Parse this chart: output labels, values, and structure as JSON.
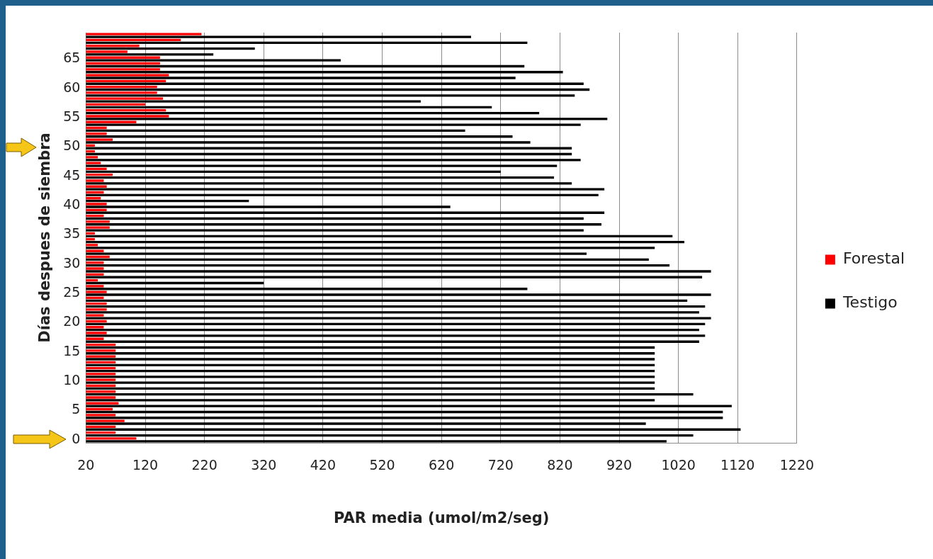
{
  "chart_data": {
    "type": "bar",
    "orientation": "horizontal",
    "xlabel": "PAR media (umol/m2/seg)",
    "ylabel": "Días despues de siembra",
    "categories": [
      null,
      null,
      null,
      null,
      "65",
      null,
      null,
      null,
      null,
      "60",
      null,
      null,
      null,
      null,
      "55",
      null,
      null,
      null,
      null,
      "50",
      null,
      null,
      null,
      null,
      "45",
      null,
      null,
      null,
      null,
      "40",
      null,
      null,
      null,
      null,
      "35",
      null,
      null,
      null,
      null,
      "30",
      null,
      null,
      null,
      null,
      "25",
      null,
      null,
      null,
      null,
      "20",
      null,
      null,
      null,
      null,
      "15",
      null,
      null,
      null,
      null,
      "10",
      null,
      null,
      null,
      null,
      "5",
      null,
      null,
      null,
      null,
      "0"
    ],
    "series": [
      {
        "name": "Forestal",
        "color": "#ff0000",
        "values": [
          215,
          180,
          110,
          90,
          145,
          145,
          145,
          160,
          155,
          140,
          140,
          150,
          120,
          155,
          160,
          105,
          55,
          55,
          65,
          35,
          35,
          40,
          45,
          55,
          65,
          50,
          55,
          50,
          45,
          55,
          55,
          50,
          60,
          60,
          35,
          35,
          40,
          50,
          60,
          50,
          50,
          50,
          40,
          50,
          55,
          50,
          55,
          55,
          50,
          55,
          50,
          55,
          50,
          70,
          70,
          70,
          70,
          70,
          70,
          70,
          70,
          70,
          70,
          75,
          65,
          70,
          85,
          70,
          70,
          105
        ]
      },
      {
        "name": "Testigo",
        "color": "#000000",
        "values": [
          670,
          765,
          305,
          235,
          450,
          760,
          825,
          745,
          860,
          870,
          845,
          585,
          705,
          785,
          900,
          855,
          660,
          740,
          770,
          840,
          840,
          855,
          815,
          720,
          810,
          840,
          895,
          885,
          295,
          635,
          895,
          860,
          890,
          860,
          1010,
          1030,
          980,
          865,
          970,
          1005,
          1075,
          1060,
          320,
          765,
          1075,
          1035,
          1065,
          1055,
          1075,
          1065,
          1055,
          1065,
          1055,
          980,
          980,
          980,
          980,
          980,
          980,
          980,
          980,
          1045,
          980,
          1110,
          1095,
          1095,
          965,
          1125,
          1045,
          1000
        ]
      }
    ],
    "xlim": [
      20,
      1220
    ],
    "xticks": [
      20,
      120,
      220,
      320,
      420,
      520,
      620,
      720,
      820,
      920,
      1020,
      1120,
      1220
    ],
    "grid": "x",
    "legend": "right"
  }
}
